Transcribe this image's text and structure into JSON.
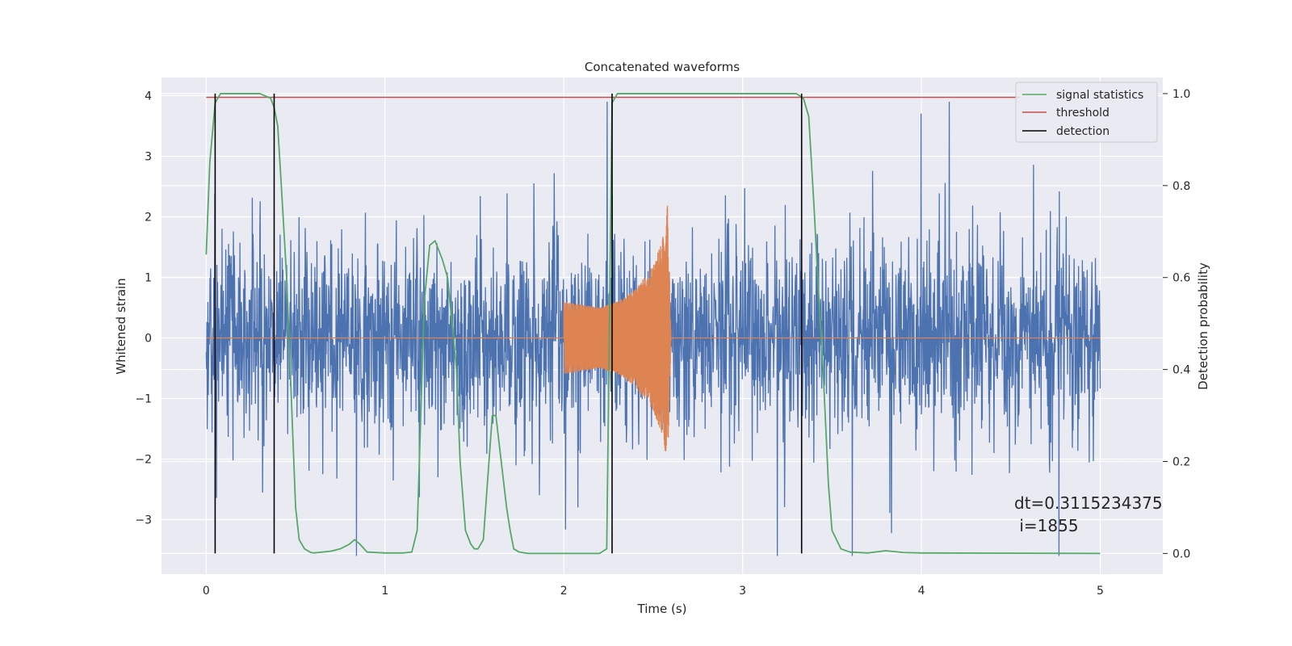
{
  "chart_data": {
    "type": "line",
    "title": "Concatenated waveforms",
    "xlabel": "Time (s)",
    "ylabel": "Whitened strain",
    "y2label": "Detection probability",
    "xlim": [
      -0.25,
      5.35
    ],
    "ylim": [
      -3.9,
      4.3
    ],
    "y2lim": [
      -0.045,
      1.035
    ],
    "x_ticks": [
      0,
      1,
      2,
      3,
      4,
      5
    ],
    "y_ticks": [
      -3,
      -2,
      -1,
      0,
      1,
      2,
      3,
      4
    ],
    "y2_ticks": [
      0.0,
      0.2,
      0.4,
      0.6,
      0.8,
      1.0
    ],
    "x_tick_labels": [
      "0",
      "1",
      "2",
      "3",
      "4",
      "5"
    ],
    "y_tick_labels": [
      "−3",
      "−2",
      "−1",
      "0",
      "1",
      "2",
      "3",
      "4"
    ],
    "y2_tick_labels": [
      "0.0",
      "0.2",
      "0.4",
      "0.6",
      "0.8",
      "1.0"
    ],
    "grid": true,
    "legend_position": "top-right",
    "series": [
      {
        "name": "",
        "axis": "left",
        "color": "#4c72b0",
        "kind": "noise",
        "x_range": [
          0,
          5
        ],
        "typical_amplitude": [
          -1.6,
          1.6
        ],
        "peak_range": [
          -3.6,
          3.9
        ]
      },
      {
        "name": "",
        "axis": "left",
        "color": "#dd8452",
        "kind": "chirp",
        "flat_value": 0,
        "chirp_start": 2.0,
        "chirp_end": 2.6,
        "envelope": [
          [
            2.0,
            0.6
          ],
          [
            2.1,
            0.55
          ],
          [
            2.2,
            0.5
          ],
          [
            2.3,
            0.6
          ],
          [
            2.4,
            0.8
          ],
          [
            2.5,
            1.2
          ],
          [
            2.55,
            1.6
          ],
          [
            2.58,
            2.2
          ],
          [
            2.6,
            0.0
          ]
        ]
      },
      {
        "name": "signal statistics",
        "axis": "right",
        "color": "#55a868",
        "x": [
          0,
          0.02,
          0.05,
          0.08,
          0.1,
          0.15,
          0.2,
          0.3,
          0.36,
          0.38,
          0.4,
          0.42,
          0.45,
          0.48,
          0.5,
          0.52,
          0.55,
          0.58,
          0.6,
          0.7,
          0.75,
          0.8,
          0.83,
          0.86,
          0.9,
          1.0,
          1.1,
          1.15,
          1.18,
          1.2,
          1.22,
          1.25,
          1.28,
          1.32,
          1.35,
          1.4,
          1.42,
          1.45,
          1.48,
          1.5,
          1.52,
          1.55,
          1.6,
          1.62,
          1.65,
          1.68,
          1.7,
          1.72,
          1.75,
          1.8,
          2.0,
          2.2,
          2.24,
          2.27,
          2.3,
          2.5,
          3.0,
          3.3,
          3.34,
          3.37,
          3.4,
          3.42,
          3.45,
          3.48,
          3.5,
          3.55,
          3.6,
          3.7,
          3.8,
          3.9,
          4.0,
          5.0
        ],
        "values": [
          0.65,
          0.85,
          0.98,
          1.0,
          1.0,
          1.0,
          1.0,
          1.0,
          0.99,
          0.97,
          0.93,
          0.8,
          0.6,
          0.3,
          0.1,
          0.03,
          0.01,
          0.003,
          0.001,
          0.005,
          0.01,
          0.02,
          0.03,
          0.02,
          0.003,
          0.001,
          0.001,
          0.003,
          0.05,
          0.3,
          0.55,
          0.67,
          0.68,
          0.64,
          0.6,
          0.4,
          0.2,
          0.05,
          0.02,
          0.01,
          0.01,
          0.03,
          0.3,
          0.3,
          0.2,
          0.1,
          0.05,
          0.01,
          0.003,
          0.0,
          0.0,
          0.0,
          0.01,
          0.98,
          1.0,
          1.0,
          1.0,
          1.0,
          0.99,
          0.95,
          0.75,
          0.6,
          0.4,
          0.15,
          0.05,
          0.01,
          0.003,
          0.001,
          0.006,
          0.002,
          0.001,
          0.0
        ]
      },
      {
        "name": "threshold",
        "axis": "right",
        "color": "#c44e52",
        "x": [
          0,
          4.55
        ],
        "values": [
          0.992,
          0.992
        ]
      },
      {
        "name": "detection",
        "axis": "right",
        "color": "#000000",
        "kind": "vlines",
        "x": [
          0.05,
          0.38,
          2.27,
          3.33
        ],
        "span": [
          0.0,
          1.0
        ]
      }
    ],
    "annotation": {
      "line1": "dt=0.3115234375",
      "line2": " i=1855",
      "x": 4.5,
      "y": -2.7
    }
  }
}
